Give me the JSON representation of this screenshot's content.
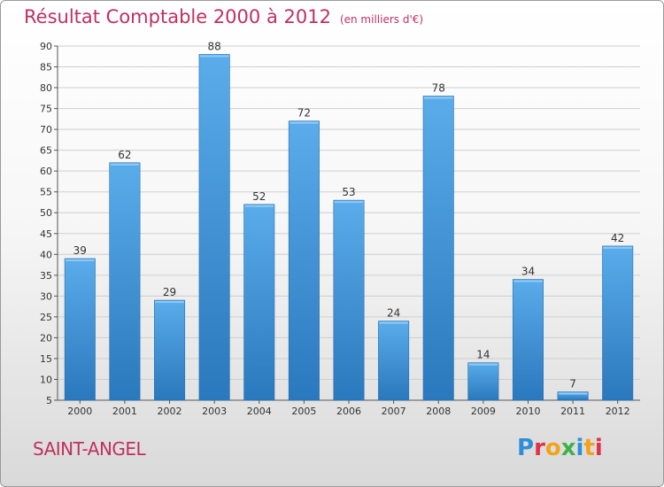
{
  "header": {
    "title": "Résultat Comptable 2000 à 2012",
    "subtitle": "(en milliers d'€)"
  },
  "commune": "SAINT-ANGEL",
  "logo": {
    "letters": [
      "P",
      "r",
      "o",
      "x",
      "i",
      "t",
      "i"
    ],
    "colors": [
      "#2f8fd6",
      "#e0334a",
      "#f3a21b",
      "#3db24a",
      "#2f8fd6",
      "#f3a21b",
      "#e0334a"
    ]
  },
  "colors": {
    "bar_light": "#5aacea",
    "bar_dark": "#2a78bd",
    "grid": "#cfcfcf",
    "title": "#c0305f"
  },
  "chart_data": {
    "type": "bar",
    "title": "Résultat Comptable 2000 à 2012",
    "subtitle": "(en milliers d'€)",
    "categories": [
      "2000",
      "2001",
      "2002",
      "2003",
      "2004",
      "2005",
      "2006",
      "2007",
      "2008",
      "2009",
      "2010",
      "2011",
      "2012"
    ],
    "values": [
      39,
      62,
      29,
      88,
      52,
      72,
      53,
      24,
      78,
      14,
      34,
      7,
      42
    ],
    "labels": [
      "39",
      "62",
      "29",
      "88",
      "52",
      "72",
      "53",
      "24",
      "78",
      "14",
      "34",
      "7",
      "42"
    ],
    "ylim": [
      5,
      90
    ],
    "yticks": [
      "5",
      "10",
      "15",
      "20",
      "25",
      "30",
      "35",
      "40",
      "45",
      "50",
      "55",
      "60",
      "65",
      "70",
      "75",
      "80",
      "85",
      "90"
    ],
    "grid": true,
    "legend": "none"
  }
}
